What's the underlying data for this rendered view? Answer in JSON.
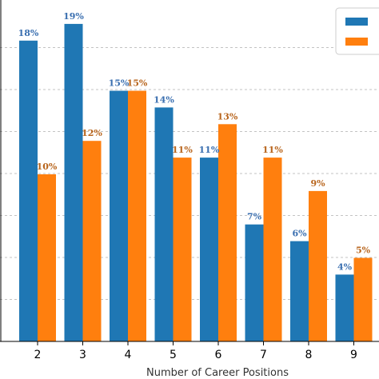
{
  "chart_data": {
    "type": "bar",
    "categories": [
      "2",
      "3",
      "4",
      "5",
      "6",
      "7",
      "8",
      "9"
    ],
    "series": [
      {
        "values": [
          18,
          19,
          15,
          14,
          11,
          7,
          6,
          4
        ],
        "color": "#1f77b4"
      },
      {
        "values": [
          10,
          12,
          15,
          11,
          13,
          11,
          9,
          5
        ],
        "color": "#ff7f0e"
      }
    ],
    "data_labels": [
      [
        "18%",
        "19%",
        "15%",
        "14%",
        "11%",
        "7%",
        "6%",
        "4%"
      ],
      [
        "10%",
        "12%",
        "15%",
        "11%",
        "13%",
        "11%",
        "9%",
        "5%"
      ]
    ],
    "label_colors": [
      "#3a6fb0",
      "#b8651d"
    ],
    "xlabel": "Number of Career Positions",
    "ylim": [
      0,
      20
    ],
    "grid": true,
    "grid_style": "dashed-horizontal",
    "legend_position": "top-right"
  }
}
